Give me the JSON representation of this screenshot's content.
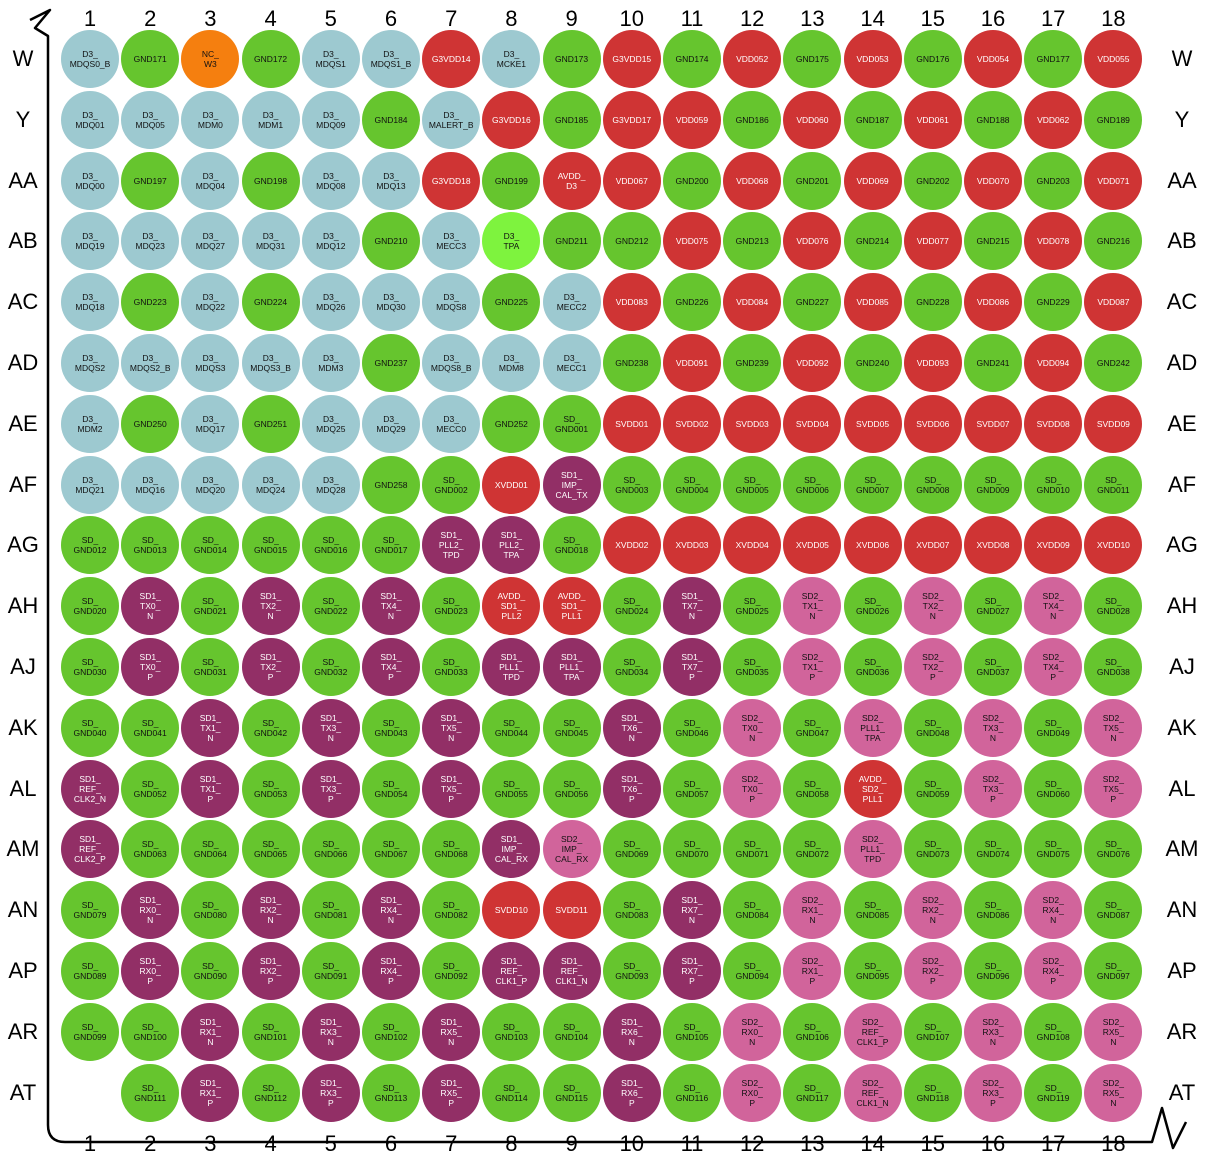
{
  "colors": {
    "ddr": "#9dc9d0",
    "gnd": "#66c52e",
    "power": "#cf3434",
    "sd1": "#922f66",
    "sd2": "#d1649b",
    "nc": "#f57f0f",
    "tpa": "#7ef33e"
  },
  "columns": [
    "1",
    "2",
    "3",
    "4",
    "5",
    "6",
    "7",
    "8",
    "9",
    "10",
    "11",
    "12",
    "13",
    "14",
    "15",
    "16",
    "17",
    "18"
  ],
  "rows": [
    "W",
    "Y",
    "AA",
    "AB",
    "AC",
    "AD",
    "AE",
    "AF",
    "AG",
    "AH",
    "AJ",
    "AK",
    "AL",
    "AM",
    "AN",
    "AP",
    "AR",
    "AT"
  ],
  "pins": [
    [
      [
        "D3_\nMDQS0_B",
        "ddr"
      ],
      [
        "GND171",
        "gnd"
      ],
      [
        "NC_\nW3",
        "nc"
      ],
      [
        "GND172",
        "gnd"
      ],
      [
        "D3_\nMDQS1",
        "ddr"
      ],
      [
        "D3_\nMDQS1_B",
        "ddr"
      ],
      [
        "G3VDD14",
        "power"
      ],
      [
        "D3_\nMCKE1",
        "ddr"
      ],
      [
        "GND173",
        "gnd"
      ],
      [
        "G3VDD15",
        "power"
      ],
      [
        "GND174",
        "gnd"
      ],
      [
        "VDD052",
        "power"
      ],
      [
        "GND175",
        "gnd"
      ],
      [
        "VDD053",
        "power"
      ],
      [
        "GND176",
        "gnd"
      ],
      [
        "VDD054",
        "power"
      ],
      [
        "GND177",
        "gnd"
      ],
      [
        "VDD055",
        "power"
      ]
    ],
    [
      [
        "D3_\nMDQ01",
        "ddr"
      ],
      [
        "D3_\nMDQ05",
        "ddr"
      ],
      [
        "D3_\nMDM0",
        "ddr"
      ],
      [
        "D3_\nMDM1",
        "ddr"
      ],
      [
        "D3_\nMDQ09",
        "ddr"
      ],
      [
        "GND184",
        "gnd"
      ],
      [
        "D3_\nMALERT_B",
        "ddr"
      ],
      [
        "G3VDD16",
        "power"
      ],
      [
        "GND185",
        "gnd"
      ],
      [
        "G3VDD17",
        "power"
      ],
      [
        "VDD059",
        "power"
      ],
      [
        "GND186",
        "gnd"
      ],
      [
        "VDD060",
        "power"
      ],
      [
        "GND187",
        "gnd"
      ],
      [
        "VDD061",
        "power"
      ],
      [
        "GND188",
        "gnd"
      ],
      [
        "VDD062",
        "power"
      ],
      [
        "GND189",
        "gnd"
      ]
    ],
    [
      [
        "D3_\nMDQ00",
        "ddr"
      ],
      [
        "GND197",
        "gnd"
      ],
      [
        "D3_\nMDQ04",
        "ddr"
      ],
      [
        "GND198",
        "gnd"
      ],
      [
        "D3_\nMDQ08",
        "ddr"
      ],
      [
        "D3_\nMDQ13",
        "ddr"
      ],
      [
        "G3VDD18",
        "power"
      ],
      [
        "GND199",
        "gnd"
      ],
      [
        "AVDD_\nD3",
        "power"
      ],
      [
        "VDD067",
        "power"
      ],
      [
        "GND200",
        "gnd"
      ],
      [
        "VDD068",
        "power"
      ],
      [
        "GND201",
        "gnd"
      ],
      [
        "VDD069",
        "power"
      ],
      [
        "GND202",
        "gnd"
      ],
      [
        "VDD070",
        "power"
      ],
      [
        "GND203",
        "gnd"
      ],
      [
        "VDD071",
        "power"
      ]
    ],
    [
      [
        "D3_\nMDQ19",
        "ddr"
      ],
      [
        "D3_\nMDQ23",
        "ddr"
      ],
      [
        "D3_\nMDQ27",
        "ddr"
      ],
      [
        "D3_\nMDQ31",
        "ddr"
      ],
      [
        "D3_\nMDQ12",
        "ddr"
      ],
      [
        "GND210",
        "gnd"
      ],
      [
        "D3_\nMECC3",
        "ddr"
      ],
      [
        "D3_\nTPA",
        "tpa"
      ],
      [
        "GND211",
        "gnd"
      ],
      [
        "GND212",
        "gnd"
      ],
      [
        "VDD075",
        "power"
      ],
      [
        "GND213",
        "gnd"
      ],
      [
        "VDD076",
        "power"
      ],
      [
        "GND214",
        "gnd"
      ],
      [
        "VDD077",
        "power"
      ],
      [
        "GND215",
        "gnd"
      ],
      [
        "VDD078",
        "power"
      ],
      [
        "GND216",
        "gnd"
      ]
    ],
    [
      [
        "D3_\nMDQ18",
        "ddr"
      ],
      [
        "GND223",
        "gnd"
      ],
      [
        "D3_\nMDQ22",
        "ddr"
      ],
      [
        "GND224",
        "gnd"
      ],
      [
        "D3_\nMDQ26",
        "ddr"
      ],
      [
        "D3_\nMDQ30",
        "ddr"
      ],
      [
        "D3_\nMDQS8",
        "ddr"
      ],
      [
        "GND225",
        "gnd"
      ],
      [
        "D3_\nMECC2",
        "ddr"
      ],
      [
        "VDD083",
        "power"
      ],
      [
        "GND226",
        "gnd"
      ],
      [
        "VDD084",
        "power"
      ],
      [
        "GND227",
        "gnd"
      ],
      [
        "VDD085",
        "power"
      ],
      [
        "GND228",
        "gnd"
      ],
      [
        "VDD086",
        "power"
      ],
      [
        "GND229",
        "gnd"
      ],
      [
        "VDD087",
        "power"
      ]
    ],
    [
      [
        "D3_\nMDQS2",
        "ddr"
      ],
      [
        "D3_\nMDQS2_B",
        "ddr"
      ],
      [
        "D3_\nMDQS3",
        "ddr"
      ],
      [
        "D3_\nMDQS3_B",
        "ddr"
      ],
      [
        "D3_\nMDM3",
        "ddr"
      ],
      [
        "GND237",
        "gnd"
      ],
      [
        "D3_\nMDQS8_B",
        "ddr"
      ],
      [
        "D3_\nMDM8",
        "ddr"
      ],
      [
        "D3_\nMECC1",
        "ddr"
      ],
      [
        "GND238",
        "gnd"
      ],
      [
        "VDD091",
        "power"
      ],
      [
        "GND239",
        "gnd"
      ],
      [
        "VDD092",
        "power"
      ],
      [
        "GND240",
        "gnd"
      ],
      [
        "VDD093",
        "power"
      ],
      [
        "GND241",
        "gnd"
      ],
      [
        "VDD094",
        "power"
      ],
      [
        "GND242",
        "gnd"
      ]
    ],
    [
      [
        "D3_\nMDM2",
        "ddr"
      ],
      [
        "GND250",
        "gnd"
      ],
      [
        "D3_\nMDQ17",
        "ddr"
      ],
      [
        "GND251",
        "gnd"
      ],
      [
        "D3_\nMDQ25",
        "ddr"
      ],
      [
        "D3_\nMDQ29",
        "ddr"
      ],
      [
        "D3_\nMECC0",
        "ddr"
      ],
      [
        "GND252",
        "gnd"
      ],
      [
        "SD_\nGND001",
        "gnd"
      ],
      [
        "SVDD01",
        "power"
      ],
      [
        "SVDD02",
        "power"
      ],
      [
        "SVDD03",
        "power"
      ],
      [
        "SVDD04",
        "power"
      ],
      [
        "SVDD05",
        "power"
      ],
      [
        "SVDD06",
        "power"
      ],
      [
        "SVDD07",
        "power"
      ],
      [
        "SVDD08",
        "power"
      ],
      [
        "SVDD09",
        "power"
      ]
    ],
    [
      [
        "D3_\nMDQ21",
        "ddr"
      ],
      [
        "D3_\nMDQ16",
        "ddr"
      ],
      [
        "D3_\nMDQ20",
        "ddr"
      ],
      [
        "D3_\nMDQ24",
        "ddr"
      ],
      [
        "D3_\nMDQ28",
        "ddr"
      ],
      [
        "GND258",
        "gnd"
      ],
      [
        "SD_\nGND002",
        "gnd"
      ],
      [
        "XVDD01",
        "power"
      ],
      [
        "SD1_\nIMP_\nCAL_TX",
        "sd1"
      ],
      [
        "SD_\nGND003",
        "gnd"
      ],
      [
        "SD_\nGND004",
        "gnd"
      ],
      [
        "SD_\nGND005",
        "gnd"
      ],
      [
        "SD_\nGND006",
        "gnd"
      ],
      [
        "SD_\nGND007",
        "gnd"
      ],
      [
        "SD_\nGND008",
        "gnd"
      ],
      [
        "SD_\nGND009",
        "gnd"
      ],
      [
        "SD_\nGND010",
        "gnd"
      ],
      [
        "SD_\nGND011",
        "gnd"
      ]
    ],
    [
      [
        "SD_\nGND012",
        "gnd"
      ],
      [
        "SD_\nGND013",
        "gnd"
      ],
      [
        "SD_\nGND014",
        "gnd"
      ],
      [
        "SD_\nGND015",
        "gnd"
      ],
      [
        "SD_\nGND016",
        "gnd"
      ],
      [
        "SD_\nGND017",
        "gnd"
      ],
      [
        "SD1_\nPLL2_\nTPD",
        "sd1"
      ],
      [
        "SD1_\nPLL2_\nTPA",
        "sd1"
      ],
      [
        "SD_\nGND018",
        "gnd"
      ],
      [
        "XVDD02",
        "power"
      ],
      [
        "XVDD03",
        "power"
      ],
      [
        "XVDD04",
        "power"
      ],
      [
        "XVDD05",
        "power"
      ],
      [
        "XVDD06",
        "power"
      ],
      [
        "XVDD07",
        "power"
      ],
      [
        "XVDD08",
        "power"
      ],
      [
        "XVDD09",
        "power"
      ],
      [
        "XVDD10",
        "power"
      ]
    ],
    [
      [
        "SD_\nGND020",
        "gnd"
      ],
      [
        "SD1_\nTX0_\nN",
        "sd1"
      ],
      [
        "SD_\nGND021",
        "gnd"
      ],
      [
        "SD1_\nTX2_\nN",
        "sd1"
      ],
      [
        "SD_\nGND022",
        "gnd"
      ],
      [
        "SD1_\nTX4_\nN",
        "sd1"
      ],
      [
        "SD_\nGND023",
        "gnd"
      ],
      [
        "AVDD_\nSD1_\nPLL2",
        "power"
      ],
      [
        "AVDD_\nSD1_\nPLL1",
        "power"
      ],
      [
        "SD_\nGND024",
        "gnd"
      ],
      [
        "SD1_\nTX7_\nN",
        "sd1"
      ],
      [
        "SD_\nGND025",
        "gnd"
      ],
      [
        "SD2_\nTX1_\nN",
        "sd2"
      ],
      [
        "SD_\nGND026",
        "gnd"
      ],
      [
        "SD2_\nTX2_\nN",
        "sd2"
      ],
      [
        "SD_\nGND027",
        "gnd"
      ],
      [
        "SD2_\nTX4_\nN",
        "sd2"
      ],
      [
        "SD_\nGND028",
        "gnd"
      ]
    ],
    [
      [
        "SD_\nGND030",
        "gnd"
      ],
      [
        "SD1_\nTX0_\nP",
        "sd1"
      ],
      [
        "SD_\nGND031",
        "gnd"
      ],
      [
        "SD1_\nTX2_\nP",
        "sd1"
      ],
      [
        "SD_\nGND032",
        "gnd"
      ],
      [
        "SD1_\nTX4_\nP",
        "sd1"
      ],
      [
        "SD_\nGND033",
        "gnd"
      ],
      [
        "SD1_\nPLL1_\nTPD",
        "sd1"
      ],
      [
        "SD1_\nPLL1_\nTPA",
        "sd1"
      ],
      [
        "SD_\nGND034",
        "gnd"
      ],
      [
        "SD1_\nTX7_\nP",
        "sd1"
      ],
      [
        "SD_\nGND035",
        "gnd"
      ],
      [
        "SD2_\nTX1_\nP",
        "sd2"
      ],
      [
        "SD_\nGND036",
        "gnd"
      ],
      [
        "SD2_\nTX2_\nP",
        "sd2"
      ],
      [
        "SD_\nGND037",
        "gnd"
      ],
      [
        "SD2_\nTX4_\nP",
        "sd2"
      ],
      [
        "SD_\nGND038",
        "gnd"
      ]
    ],
    [
      [
        "SD_\nGND040",
        "gnd"
      ],
      [
        "SD_\nGND041",
        "gnd"
      ],
      [
        "SD1_\nTX1_\nN",
        "sd1"
      ],
      [
        "SD_\nGND042",
        "gnd"
      ],
      [
        "SD1_\nTX3_\nN",
        "sd1"
      ],
      [
        "SD_\nGND043",
        "gnd"
      ],
      [
        "SD1_\nTX5_\nN",
        "sd1"
      ],
      [
        "SD_\nGND044",
        "gnd"
      ],
      [
        "SD_\nGND045",
        "gnd"
      ],
      [
        "SD1_\nTX6_\nN",
        "sd1"
      ],
      [
        "SD_\nGND046",
        "gnd"
      ],
      [
        "SD2_\nTX0_\nN",
        "sd2"
      ],
      [
        "SD_\nGND047",
        "gnd"
      ],
      [
        "SD2_\nPLL1_\nTPA",
        "sd2"
      ],
      [
        "SD_\nGND048",
        "gnd"
      ],
      [
        "SD2_\nTX3_\nN",
        "sd2"
      ],
      [
        "SD_\nGND049",
        "gnd"
      ],
      [
        "SD2_\nTX5_\nN",
        "sd2"
      ]
    ],
    [
      [
        "SD1_\nREF_\nCLK2_N",
        "sd1"
      ],
      [
        "SD_\nGND052",
        "gnd"
      ],
      [
        "SD1_\nTX1_\nP",
        "sd1"
      ],
      [
        "SD_\nGND053",
        "gnd"
      ],
      [
        "SD1_\nTX3_\nP",
        "sd1"
      ],
      [
        "SD_\nGND054",
        "gnd"
      ],
      [
        "SD1_\nTX5_\nP",
        "sd1"
      ],
      [
        "SD_\nGND055",
        "gnd"
      ],
      [
        "SD_\nGND056",
        "gnd"
      ],
      [
        "SD1_\nTX6_\nP",
        "sd1"
      ],
      [
        "SD_\nGND057",
        "gnd"
      ],
      [
        "SD2_\nTX0_\nP",
        "sd2"
      ],
      [
        "SD_\nGND058",
        "gnd"
      ],
      [
        "AVDD_\nSD2_\nPLL1",
        "power"
      ],
      [
        "SD_\nGND059",
        "gnd"
      ],
      [
        "SD2_\nTX3_\nP",
        "sd2"
      ],
      [
        "SD_\nGND060",
        "gnd"
      ],
      [
        "SD2_\nTX5_\nP",
        "sd2"
      ]
    ],
    [
      [
        "SD1_\nREF_\nCLK2_P",
        "sd1"
      ],
      [
        "SD_\nGND063",
        "gnd"
      ],
      [
        "SD_\nGND064",
        "gnd"
      ],
      [
        "SD_\nGND065",
        "gnd"
      ],
      [
        "SD_\nGND066",
        "gnd"
      ],
      [
        "SD_\nGND067",
        "gnd"
      ],
      [
        "SD_\nGND068",
        "gnd"
      ],
      [
        "SD1_\nIMP_\nCAL_RX",
        "sd1"
      ],
      [
        "SD2_\nIMP_\nCAL_RX",
        "sd2"
      ],
      [
        "SD_\nGND069",
        "gnd"
      ],
      [
        "SD_\nGND070",
        "gnd"
      ],
      [
        "SD_\nGND071",
        "gnd"
      ],
      [
        "SD_\nGND072",
        "gnd"
      ],
      [
        "SD2_\nPLL1_\nTPD",
        "sd2"
      ],
      [
        "SD_\nGND073",
        "gnd"
      ],
      [
        "SD_\nGND074",
        "gnd"
      ],
      [
        "SD_\nGND075",
        "gnd"
      ],
      [
        "SD_\nGND076",
        "gnd"
      ]
    ],
    [
      [
        "SD_\nGND079",
        "gnd"
      ],
      [
        "SD1_\nRX0_\nN",
        "sd1"
      ],
      [
        "SD_\nGND080",
        "gnd"
      ],
      [
        "SD1_\nRX2_\nN",
        "sd1"
      ],
      [
        "SD_\nGND081",
        "gnd"
      ],
      [
        "SD1_\nRX4_\nN",
        "sd1"
      ],
      [
        "SD_\nGND082",
        "gnd"
      ],
      [
        "SVDD10",
        "power"
      ],
      [
        "SVDD11",
        "power"
      ],
      [
        "SD_\nGND083",
        "gnd"
      ],
      [
        "SD1_\nRX7_\nN",
        "sd1"
      ],
      [
        "SD_\nGND084",
        "gnd"
      ],
      [
        "SD2_\nRX1_\nN",
        "sd2"
      ],
      [
        "SD_\nGND085",
        "gnd"
      ],
      [
        "SD2_\nRX2_\nN",
        "sd2"
      ],
      [
        "SD_\nGND086",
        "gnd"
      ],
      [
        "SD2_\nRX4_\nN",
        "sd2"
      ],
      [
        "SD_\nGND087",
        "gnd"
      ]
    ],
    [
      [
        "SD_\nGND089",
        "gnd"
      ],
      [
        "SD1_\nRX0_\nP",
        "sd1"
      ],
      [
        "SD_\nGND090",
        "gnd"
      ],
      [
        "SD1_\nRX2_\nP",
        "sd1"
      ],
      [
        "SD_\nGND091",
        "gnd"
      ],
      [
        "SD1_\nRX4_\nP",
        "sd1"
      ],
      [
        "SD_\nGND092",
        "gnd"
      ],
      [
        "SD1_\nREF_\nCLK1_P",
        "sd1"
      ],
      [
        "SD1_\nREF_\nCLK1_N",
        "sd1"
      ],
      [
        "SD_\nGND093",
        "gnd"
      ],
      [
        "SD1_\nRX7_\nP",
        "sd1"
      ],
      [
        "SD_\nGND094",
        "gnd"
      ],
      [
        "SD2_\nRX1_\nP",
        "sd2"
      ],
      [
        "SD_\nGND095",
        "gnd"
      ],
      [
        "SD2_\nRX2_\nP",
        "sd2"
      ],
      [
        "SD_\nGND096",
        "gnd"
      ],
      [
        "SD2_\nRX4_\nP",
        "sd2"
      ],
      [
        "SD_\nGND097",
        "gnd"
      ]
    ],
    [
      [
        "SD_\nGND099",
        "gnd"
      ],
      [
        "SD_\nGND100",
        "gnd"
      ],
      [
        "SD1_\nRX1_\nN",
        "sd1"
      ],
      [
        "SD_\nGND101",
        "gnd"
      ],
      [
        "SD1_\nRX3_\nN",
        "sd1"
      ],
      [
        "SD_\nGND102",
        "gnd"
      ],
      [
        "SD1_\nRX5_\nN",
        "sd1"
      ],
      [
        "SD_\nGND103",
        "gnd"
      ],
      [
        "SD_\nGND104",
        "gnd"
      ],
      [
        "SD1_\nRX6_\nN",
        "sd1"
      ],
      [
        "SD_\nGND105",
        "gnd"
      ],
      [
        "SD2_\nRX0_\nN",
        "sd2"
      ],
      [
        "SD_\nGND106",
        "gnd"
      ],
      [
        "SD2_\nREF_\nCLK1_P",
        "sd2"
      ],
      [
        "SD_\nGND107",
        "gnd"
      ],
      [
        "SD2_\nRX3_\nN",
        "sd2"
      ],
      [
        "SD_\nGND108",
        "gnd"
      ],
      [
        "SD2_\nRX5_\nN",
        "sd2"
      ]
    ],
    [
      null,
      [
        "SD_\nGND111",
        "gnd"
      ],
      [
        "SD1_\nRX1_\nP",
        "sd1"
      ],
      [
        "SD_\nGND112",
        "gnd"
      ],
      [
        "SD1_\nRX3_\nP",
        "sd1"
      ],
      [
        "SD_\nGND113",
        "gnd"
      ],
      [
        "SD1_\nRX5_\nP",
        "sd1"
      ],
      [
        "SD_\nGND114",
        "gnd"
      ],
      [
        "SD_\nGND115",
        "gnd"
      ],
      [
        "SD1_\nRX6_\nP",
        "sd1"
      ],
      [
        "SD_\nGND116",
        "gnd"
      ],
      [
        "SD2_\nRX0_\nP",
        "sd2"
      ],
      [
        "SD_\nGND117",
        "gnd"
      ],
      [
        "SD2_\nREF_\nCLK1_N",
        "sd2"
      ],
      [
        "SD_\nGND118",
        "gnd"
      ],
      [
        "SD2_\nRX3_\nP",
        "sd2"
      ],
      [
        "SD_\nGND119",
        "gnd"
      ],
      [
        "SD2_\nRX5_\nN",
        "sd2"
      ]
    ]
  ]
}
